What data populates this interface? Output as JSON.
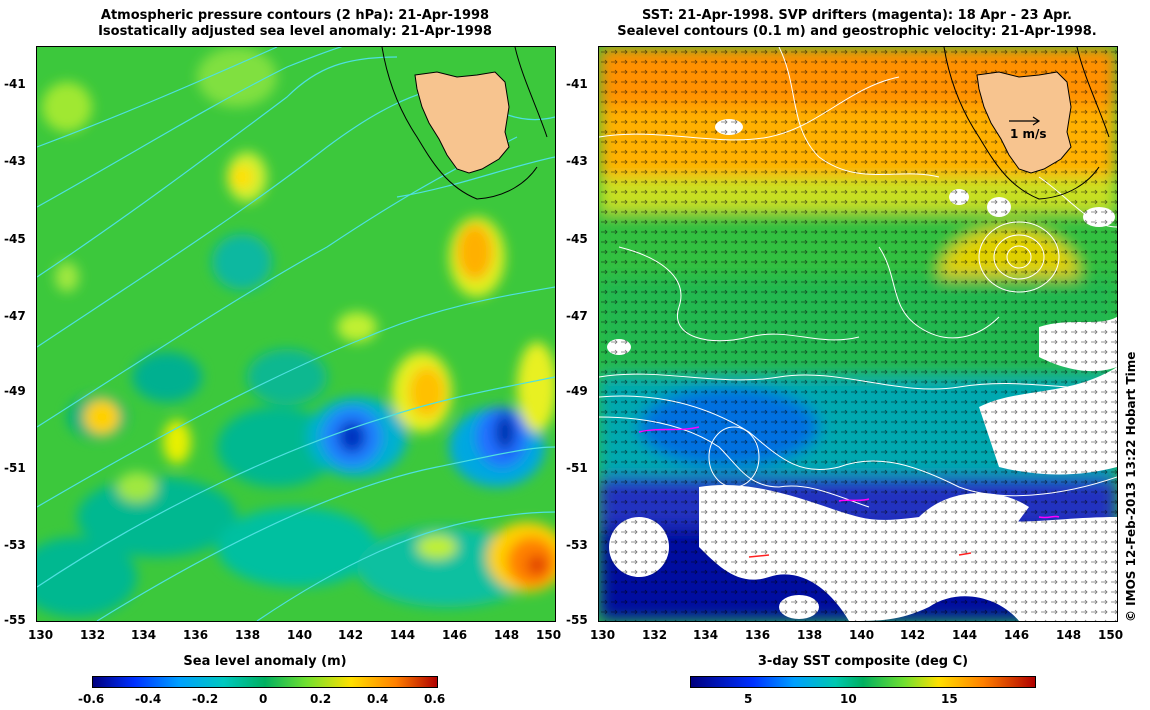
{
  "left_panel": {
    "title_line1": "Atmospheric pressure contours (2 hPa): 21-Apr-1998",
    "title_line2": "Isostatically adjusted sea level anomaly: 21-Apr-1998",
    "colorbar_label": "Sea level anomaly (m)",
    "colorbar_ticks": [
      "-0.6",
      "-0.4",
      "-0.2",
      "0",
      "0.2",
      "0.4",
      "0.6"
    ]
  },
  "right_panel": {
    "title_line1": "SST: 21-Apr-1998. SVP drifters (magenta): 18 Apr - 23 Apr.",
    "title_line2": "Sealevel contours (0.1 m) and geostrophic velocity: 21-Apr-1998.",
    "scale_arrow_label": "1 m/s",
    "colorbar_label": "3-day SST composite (deg C)",
    "colorbar_ticks": [
      "5",
      "10",
      "15"
    ]
  },
  "axes": {
    "lat_ticks": [
      "-41",
      "-43",
      "-45",
      "-47",
      "-49",
      "-51",
      "-53",
      "-55"
    ],
    "lon_ticks": [
      "130",
      "132",
      "134",
      "136",
      "138",
      "140",
      "142",
      "144",
      "146",
      "148",
      "150"
    ]
  },
  "credit": "© IMOS 12-Feb-2013 13:22 Hobart Time",
  "colors": {
    "land": "#f7c48f",
    "pressure_contour": "#4fe0e0",
    "sst_contour": "#ffffff",
    "sea_level_scale": [
      "#00007f",
      "#0050ff",
      "#00c0ff",
      "#00b060",
      "#40d040",
      "#b0f000",
      "#ffd000",
      "#ff7000",
      "#c00000"
    ]
  }
}
